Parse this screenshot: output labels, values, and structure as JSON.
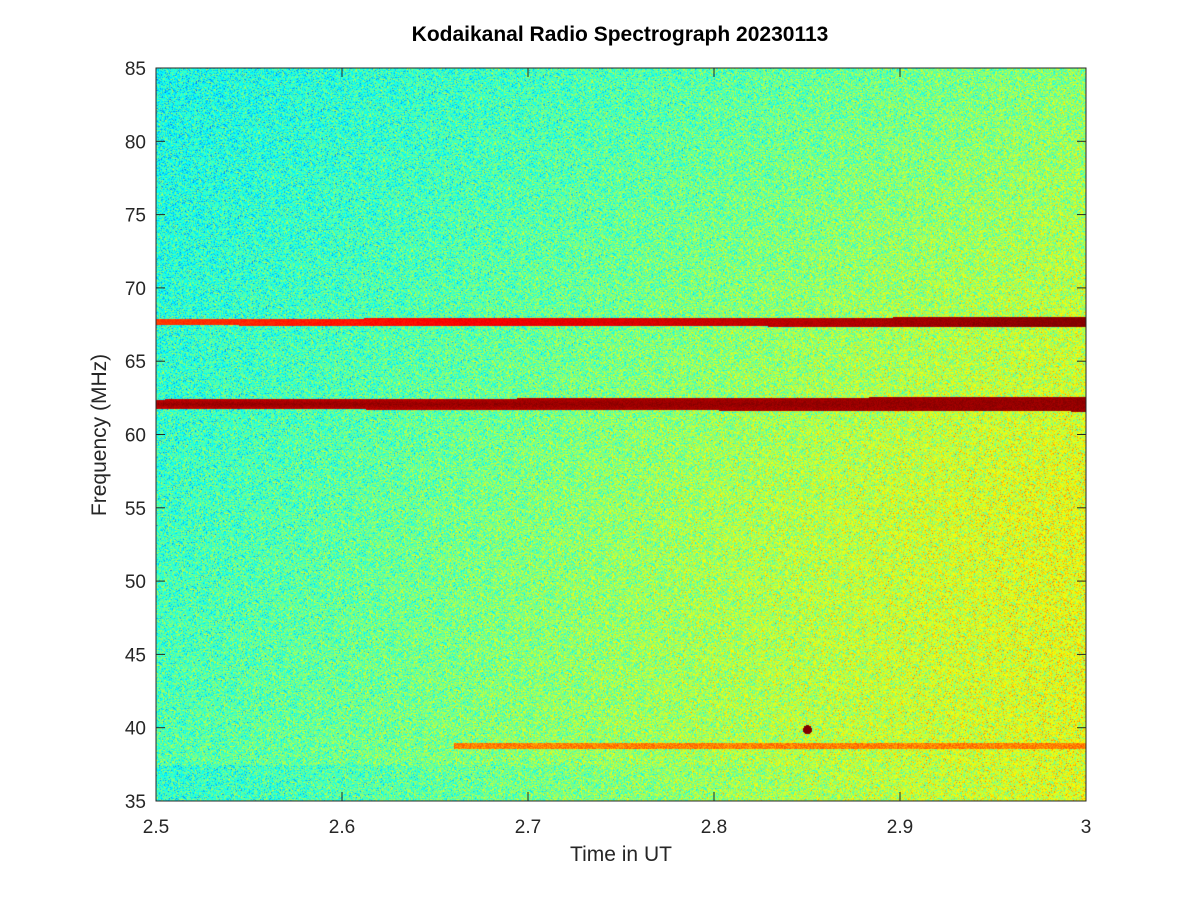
{
  "chart_data": {
    "type": "heatmap",
    "title": "Kodaikanal Radio Spectrograph  20230113",
    "xlabel": "Time in UT",
    "ylabel": "Frequency (MHz)",
    "xlim": [
      2.5,
      3.0
    ],
    "ylim": [
      35,
      85
    ],
    "xticks": [
      2.5,
      2.6,
      2.7,
      2.8,
      2.9,
      3.0
    ],
    "xtick_labels": [
      "2.5",
      "2.6",
      "2.7",
      "2.8",
      "2.9",
      "3"
    ],
    "yticks": [
      35,
      40,
      45,
      50,
      55,
      60,
      65,
      70,
      75,
      80,
      85
    ],
    "ytick_labels": [
      "35",
      "40",
      "45",
      "50",
      "55",
      "60",
      "65",
      "70",
      "75",
      "80",
      "85"
    ],
    "colormap": "jet",
    "grid": false,
    "features": [
      {
        "name": "interference-band-upper",
        "frequency_mhz": 67.7,
        "time_start": 2.5,
        "time_end": 3.0,
        "intensity": "high"
      },
      {
        "name": "interference-band-lower",
        "frequency_mhz": 62.1,
        "time_start": 2.5,
        "time_end": 3.0,
        "intensity": "very-high"
      },
      {
        "name": "faint-band",
        "frequency_mhz": 38.8,
        "time_start": 2.66,
        "time_end": 3.0,
        "intensity": "low"
      },
      {
        "name": "spot",
        "frequency_mhz": 39.9,
        "time": 2.85,
        "intensity": "very-high"
      }
    ]
  }
}
